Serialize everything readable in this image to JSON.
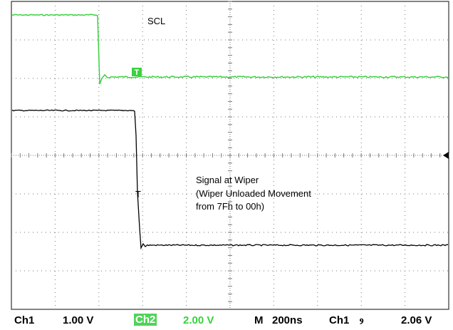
{
  "annotations": {
    "ch2_trace_label": "SCL",
    "ch1_label_line1": "Signal at Wiper",
    "ch1_label_line2": "(Wiper Unloaded Movement",
    "ch1_label_line3": "from 7Fh to 00h)"
  },
  "markers": {
    "trigger_marker": "T",
    "ch1_cursor_marker": "T"
  },
  "status_bar": {
    "ch1_label": "Ch1",
    "ch1_scale": "1.00 V",
    "ch2_label": "Ch2",
    "ch2_scale": "2.00 V",
    "timebase_label": "M",
    "timebase_value": "200ns",
    "trigger_source": "Ch1",
    "trigger_slope_symbol": "ⳋ",
    "trigger_level": "2.06 V"
  },
  "colors": {
    "ch2_trace": "#39d13d",
    "ch1_trace": "#000000",
    "grid": "#7a7a7a",
    "ch2_badge": "#4fd35a"
  }
}
